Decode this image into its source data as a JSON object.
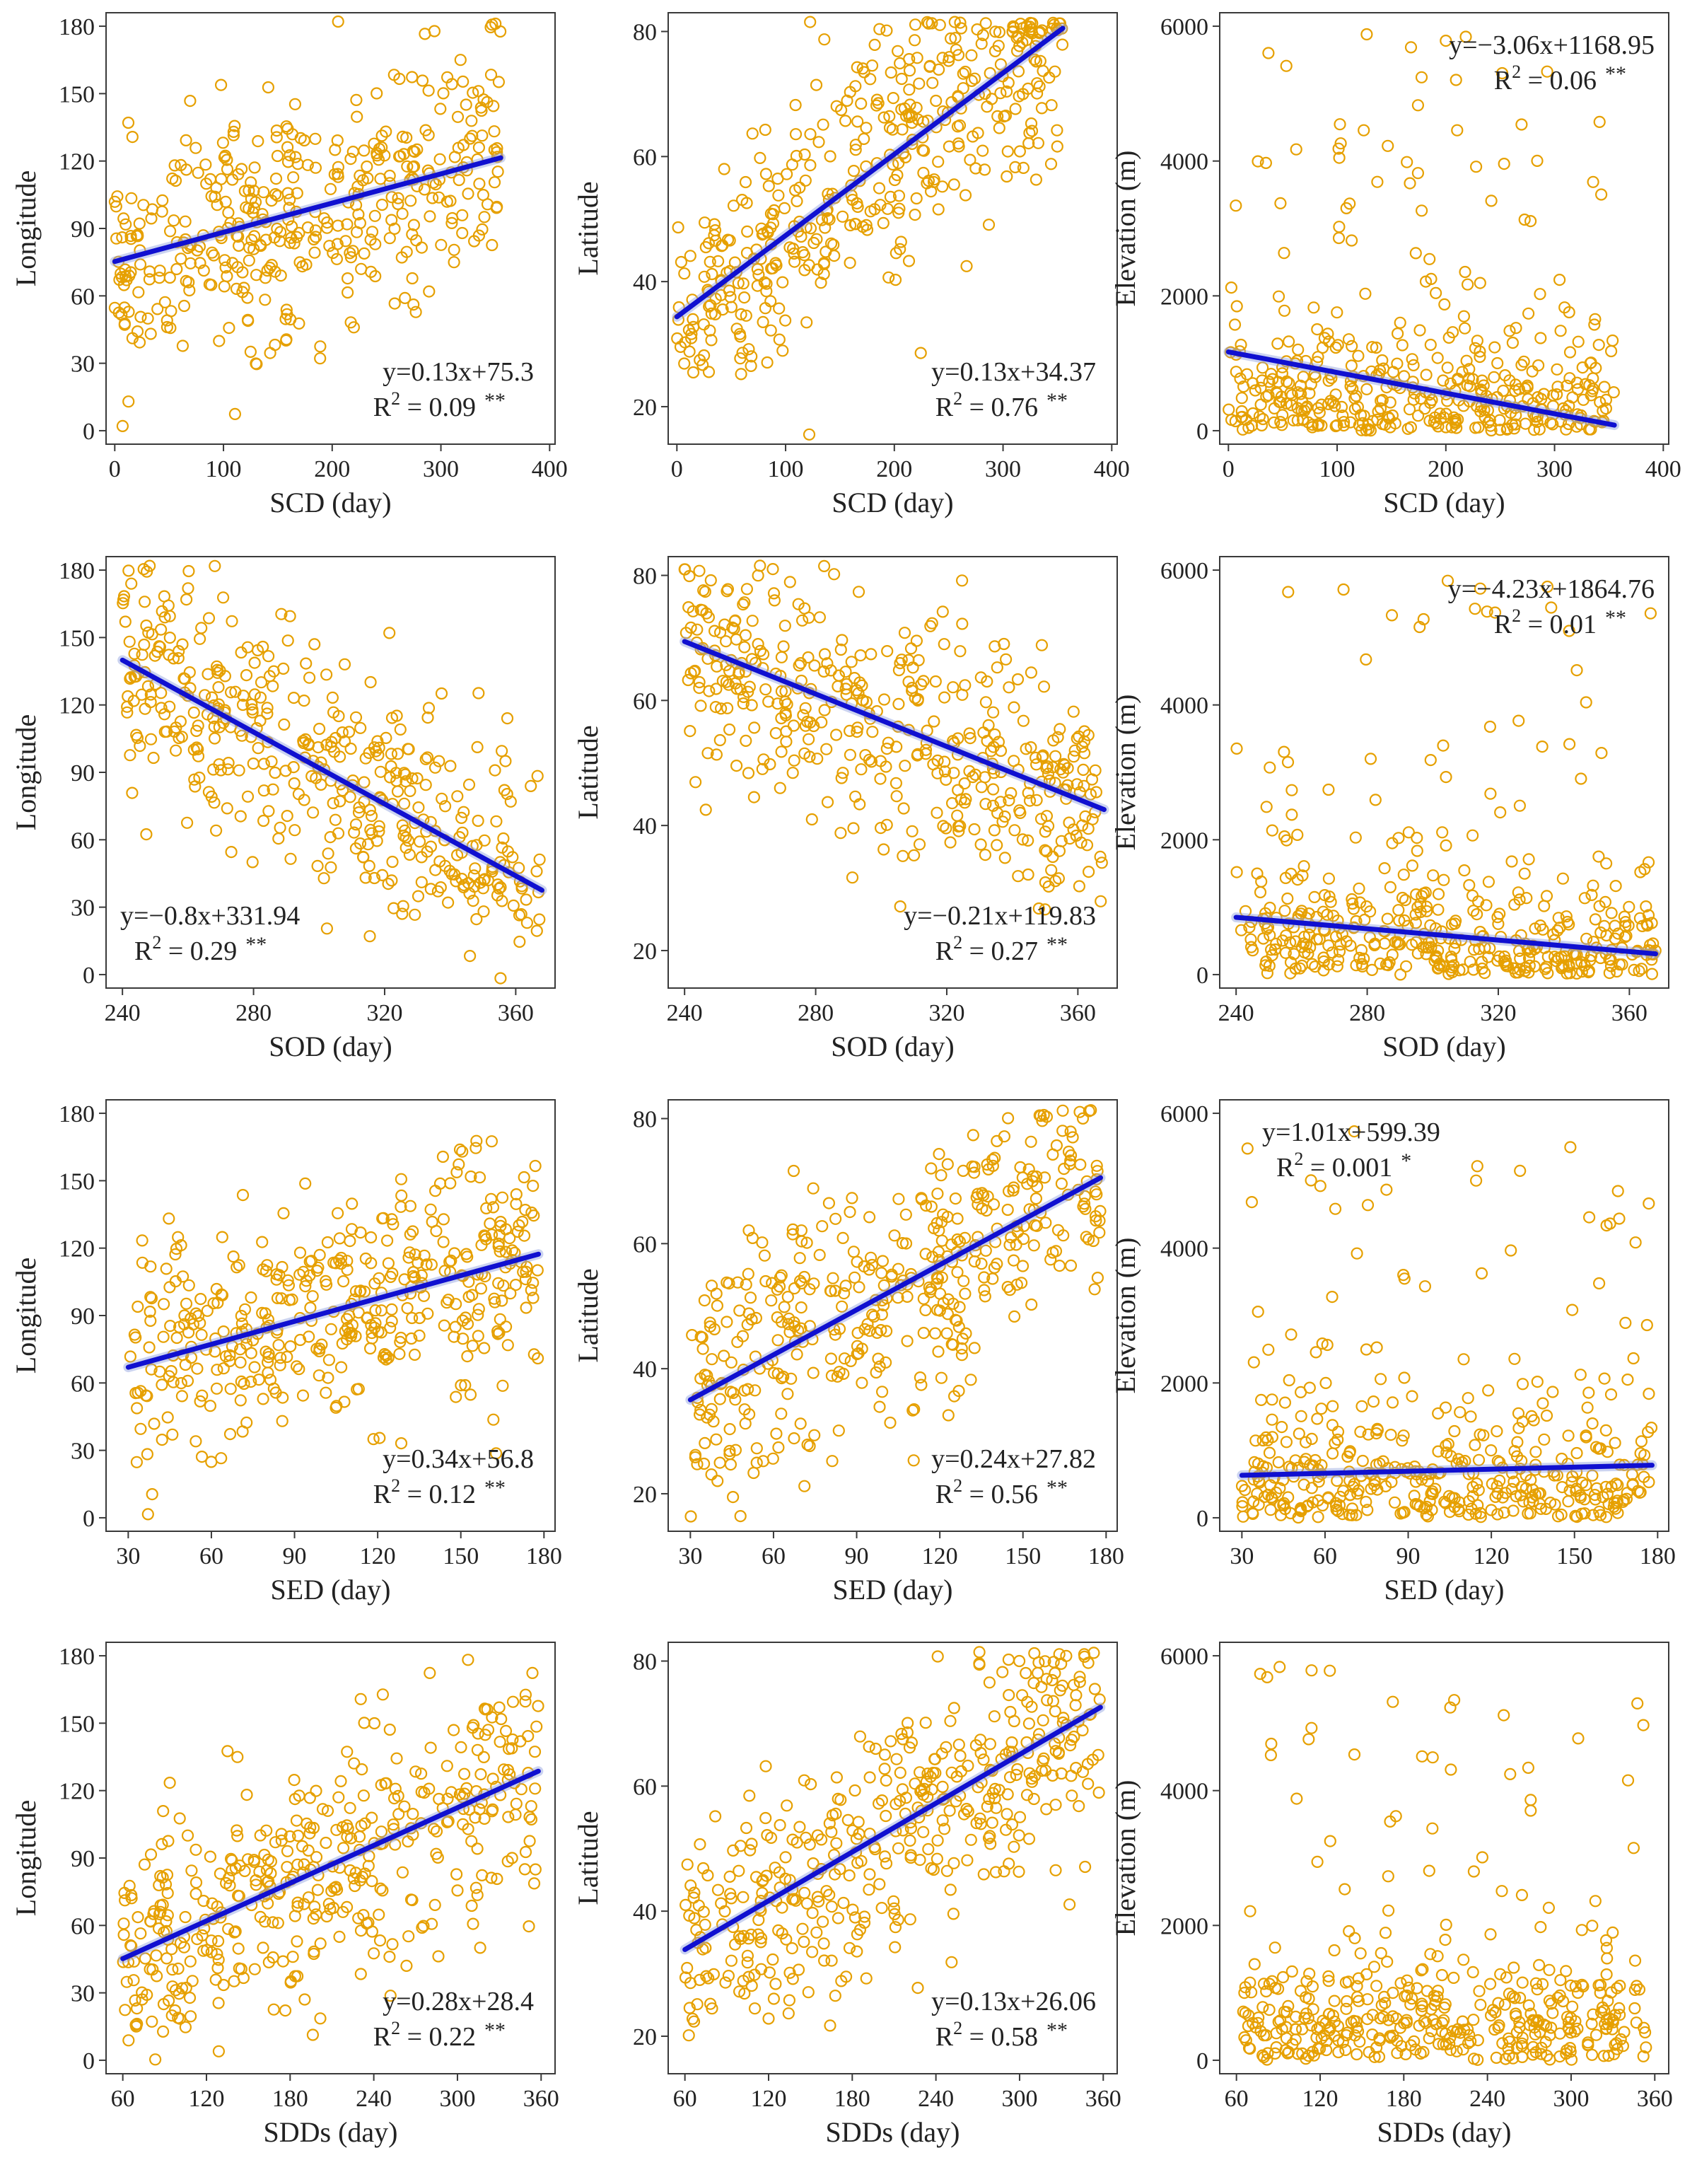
{
  "chart_data": [
    {
      "type": "scatter",
      "xlabel": "SCD (day)",
      "ylabel": "Longitude",
      "xlim": [
        -8,
        405
      ],
      "ylim": [
        -6,
        186
      ],
      "xticks": [
        0,
        100,
        200,
        300,
        400
      ],
      "yticks": [
        0,
        30,
        60,
        90,
        120,
        150,
        180
      ],
      "eq_text": "y=0.13x+75.3",
      "r2_text": "R",
      "r2_sup": "2",
      "r2_value": " = 0.09",
      "sig": "**",
      "annot_pos": "bottom-right",
      "fit": {
        "slope": 0.13,
        "intercept": 75.3,
        "x": [
          0,
          355
        ]
      }
    },
    {
      "type": "scatter",
      "xlabel": "SCD (day)",
      "ylabel": "Latitude",
      "xlim": [
        -8,
        405
      ],
      "ylim": [
        14,
        83
      ],
      "xticks": [
        0,
        100,
        200,
        300,
        400
      ],
      "yticks": [
        20,
        40,
        60,
        80
      ],
      "eq_text": "y=0.13x+34.37",
      "r2_text": "R",
      "r2_sup": "2",
      "r2_value": " = 0.76",
      "sig": "**",
      "annot_pos": "bottom-right",
      "fit": {
        "slope": 0.13,
        "intercept": 34.37,
        "x": [
          0,
          355
        ]
      }
    },
    {
      "type": "scatter",
      "xlabel": "SCD (day)",
      "ylabel": "Elevation (m)",
      "xlim": [
        -8,
        405
      ],
      "ylim": [
        -200,
        6200
      ],
      "xticks": [
        0,
        100,
        200,
        300,
        400
      ],
      "yticks": [
        0,
        2000,
        4000,
        6000
      ],
      "eq_text": "y=−3.06x+1168.95",
      "r2_text": "R",
      "r2_sup": "2",
      "r2_value": " = 0.06",
      "sig": "**",
      "annot_pos": "top-right",
      "fit": {
        "slope": -3.06,
        "intercept": 1168.95,
        "x": [
          0,
          355
        ]
      }
    },
    {
      "type": "scatter",
      "xlabel": "SOD (day)",
      "ylabel": "Longitude",
      "xlim": [
        235,
        372
      ],
      "ylim": [
        -6,
        186
      ],
      "xticks": [
        240,
        280,
        320,
        360
      ],
      "yticks": [
        0,
        30,
        60,
        90,
        120,
        150,
        180
      ],
      "eq_text": "y=−0.8x+331.94",
      "r2_text": "R",
      "r2_sup": "2",
      "r2_value": " = 0.29",
      "sig": "**",
      "annot_pos": "bottom-left",
      "fit": {
        "slope": -0.8,
        "intercept": 331.94,
        "x": [
          240,
          368
        ]
      }
    },
    {
      "type": "scatter",
      "xlabel": "SOD (day)",
      "ylabel": "Latitude",
      "xlim": [
        235,
        372
      ],
      "ylim": [
        14,
        83
      ],
      "xticks": [
        240,
        280,
        320,
        360
      ],
      "yticks": [
        20,
        40,
        60,
        80
      ],
      "eq_text": "y=−0.21x+119.83",
      "r2_text": "R",
      "r2_sup": "2",
      "r2_value": " = 0.27",
      "sig": "**",
      "annot_pos": "bottom-right",
      "fit": {
        "slope": -0.21,
        "intercept": 119.83,
        "x": [
          240,
          368
        ]
      }
    },
    {
      "type": "scatter",
      "xlabel": "SOD (day)",
      "ylabel": "Elevation (m)",
      "xlim": [
        235,
        372
      ],
      "ylim": [
        -200,
        6200
      ],
      "xticks": [
        240,
        280,
        320,
        360
      ],
      "yticks": [
        0,
        2000,
        4000,
        6000
      ],
      "eq_text": "y=−4.23x+1864.76",
      "r2_text": "R",
      "r2_sup": "2",
      "r2_value": " = 0.01",
      "sig": "**",
      "annot_pos": "top-right",
      "fit": {
        "slope": -4.23,
        "intercept": 1864.76,
        "x": [
          240,
          368
        ]
      }
    },
    {
      "type": "scatter",
      "xlabel": "SED (day)",
      "ylabel": "Longitude",
      "xlim": [
        22,
        184
      ],
      "ylim": [
        -6,
        186
      ],
      "xticks": [
        30,
        60,
        90,
        120,
        150,
        180
      ],
      "yticks": [
        0,
        30,
        60,
        90,
        120,
        150,
        180
      ],
      "eq_text": "y=0.34x+56.8",
      "r2_text": "R",
      "r2_sup": "2",
      "r2_value": " = 0.12",
      "sig": "**",
      "annot_pos": "bottom-right",
      "fit": {
        "slope": 0.34,
        "intercept": 56.8,
        "x": [
          30,
          178
        ]
      }
    },
    {
      "type": "scatter",
      "xlabel": "SED (day)",
      "ylabel": "Latitude",
      "xlim": [
        22,
        184
      ],
      "ylim": [
        14,
        83
      ],
      "xticks": [
        30,
        60,
        90,
        120,
        150,
        180
      ],
      "yticks": [
        20,
        40,
        60,
        80
      ],
      "eq_text": "y=0.24x+27.82",
      "r2_text": "R",
      "r2_sup": "2",
      "r2_value": " = 0.56",
      "sig": "**",
      "annot_pos": "bottom-right",
      "fit": {
        "slope": 0.24,
        "intercept": 27.82,
        "x": [
          30,
          178
        ]
      }
    },
    {
      "type": "scatter",
      "xlabel": "SED (day)",
      "ylabel": "Elevation (m)",
      "xlim": [
        22,
        184
      ],
      "ylim": [
        -200,
        6200
      ],
      "xticks": [
        30,
        60,
        90,
        120,
        150,
        180
      ],
      "yticks": [
        0,
        2000,
        4000,
        6000
      ],
      "eq_text": "y=1.01x+599.39",
      "r2_text": "R",
      "r2_sup": "2",
      "r2_value": " = 0.001",
      "sig": "*",
      "annot_pos": "top-left",
      "fit": {
        "slope": 1.01,
        "intercept": 599.39,
        "x": [
          30,
          178
        ]
      }
    },
    {
      "type": "scatter",
      "xlabel": "SDDs (day)",
      "ylabel": "Longitude",
      "xlim": [
        48,
        370
      ],
      "ylim": [
        -6,
        186
      ],
      "xticks": [
        60,
        120,
        180,
        240,
        300,
        360
      ],
      "yticks": [
        0,
        30,
        60,
        90,
        120,
        150,
        180
      ],
      "eq_text": "y=0.28x+28.4",
      "r2_text": "R",
      "r2_sup": "2",
      "r2_value": " = 0.22",
      "sig": "**",
      "annot_pos": "bottom-right",
      "fit": {
        "slope": 0.28,
        "intercept": 28.4,
        "x": [
          60,
          358
        ]
      }
    },
    {
      "type": "scatter",
      "xlabel": "SDDs (day)",
      "ylabel": "Latitude",
      "xlim": [
        48,
        370
      ],
      "ylim": [
        14,
        83
      ],
      "xticks": [
        60,
        120,
        180,
        240,
        300,
        360
      ],
      "yticks": [
        20,
        40,
        60,
        80
      ],
      "eq_text": "y=0.13x+26.06",
      "r2_text": "R",
      "r2_sup": "2",
      "r2_value": " = 0.58",
      "sig": "**",
      "annot_pos": "bottom-right",
      "fit": {
        "slope": 0.13,
        "intercept": 26.06,
        "x": [
          60,
          358
        ]
      }
    },
    {
      "type": "scatter",
      "xlabel": "SDDs (day)",
      "ylabel": "Elevation (m)",
      "xlim": [
        48,
        370
      ],
      "ylim": [
        -200,
        6200
      ],
      "xticks": [
        60,
        120,
        180,
        240,
        300,
        360
      ],
      "yticks": [
        0,
        2000,
        4000,
        6000
      ],
      "eq_text": "",
      "r2_text": "",
      "r2_sup": "",
      "r2_value": "",
      "sig": "",
      "annot_pos": "none",
      "fit": null
    }
  ],
  "colors": {
    "points": "#E6A000",
    "line": "#1010D0",
    "band": "#8ea0e0",
    "axis": "#3a3a3a",
    "text": "#222222"
  }
}
